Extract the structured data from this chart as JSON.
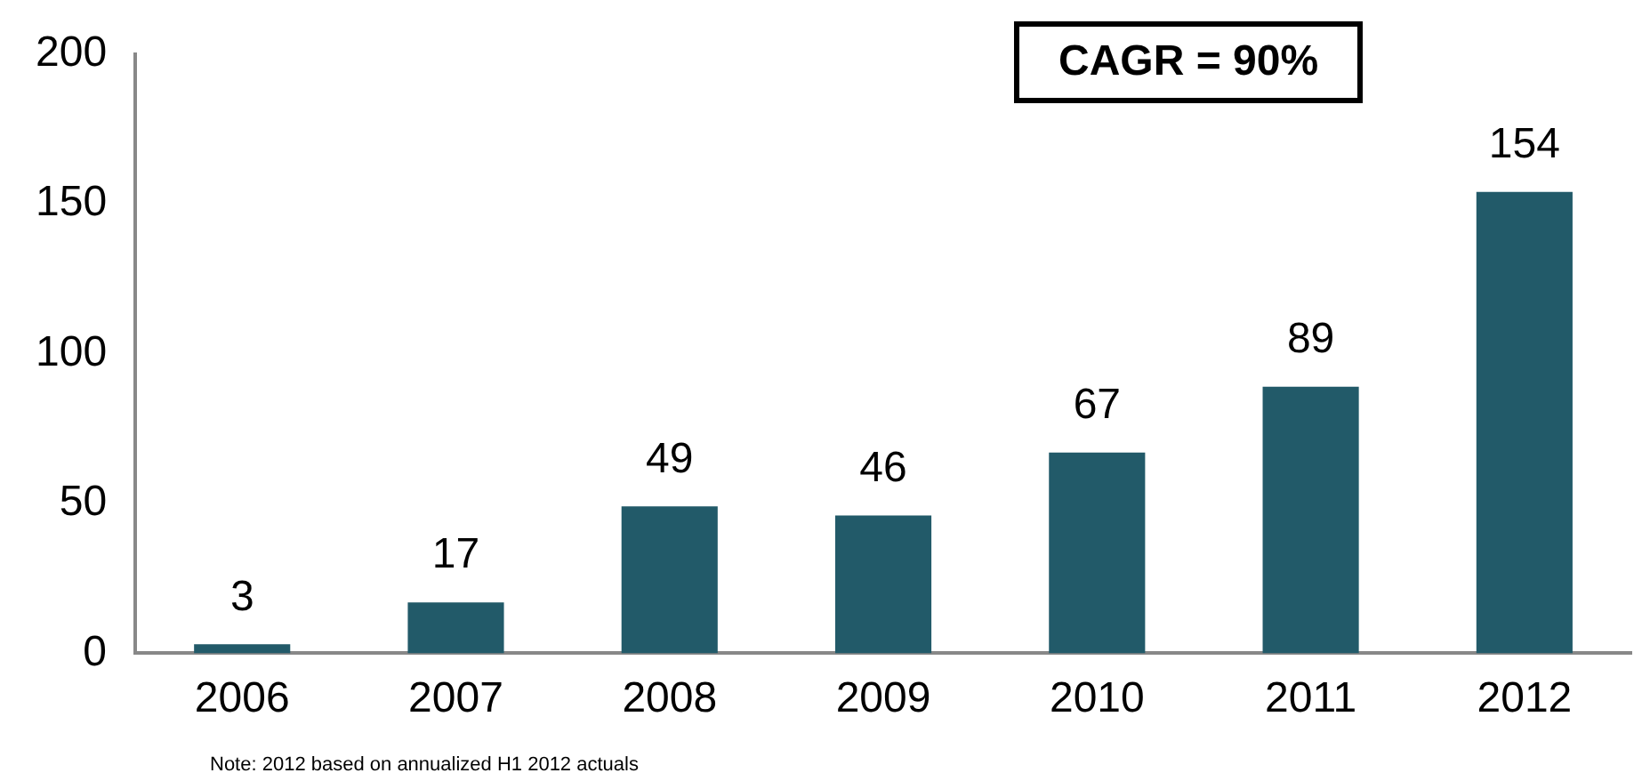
{
  "chart_data": {
    "type": "bar",
    "categories": [
      "2006",
      "2007",
      "2008",
      "2009",
      "2010",
      "2011",
      "2012"
    ],
    "values": [
      3,
      17,
      49,
      46,
      67,
      89,
      154
    ],
    "color": "#225a69",
    "ylim": [
      0,
      200
    ],
    "yticks": [
      0,
      50,
      100,
      150,
      200
    ],
    "grid": false,
    "legend": false,
    "data_labels": true,
    "annotations": [
      "CAGR = 90%",
      "Note:  2012 based on annualized H1 2012 actuals"
    ]
  }
}
